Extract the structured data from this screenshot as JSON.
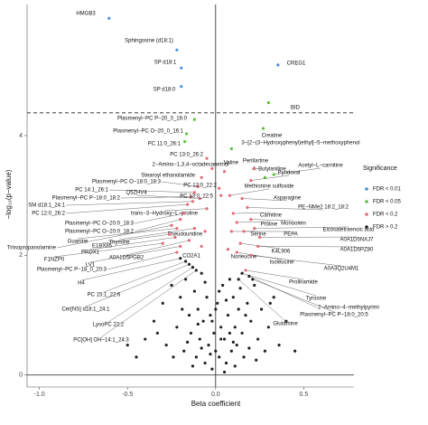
{
  "chart_data": {
    "type": "scatter",
    "x_label": "Beta coefficient",
    "y_label": "−log₁₀(p−value)",
    "legend_title": "Significance",
    "xlim": [
      -1.07,
      0.785
    ],
    "ylim": [
      -0.2,
      6.19
    ],
    "xticks": [
      {
        "value": -1,
        "label": "-1.0"
      },
      -0.5,
      {
        "value": 0,
        "label": "0.0"
      },
      0.5
    ],
    "yticks": [
      0,
      2,
      4
    ],
    "vline": 0,
    "hline": 0,
    "threshold_line": 4.38,
    "series": [
      {
        "name": "FDR < 0.01",
        "color": "#4a90d9",
        "x": [
          -0.605,
          -0.22,
          -0.195,
          -0.195,
          0.354
        ],
        "y": [
          5.96,
          5.43,
          5.13,
          4.82,
          5.18
        ],
        "labels": [
          "HMGB3",
          "Sphingosine (d18:1)",
          "SP d18:1",
          "SP d18:0",
          "CREG1"
        ]
      },
      {
        "name": "FDR < 0.05",
        "color": "#5cc43a",
        "x": [
          0.3,
          -0.12,
          -0.165,
          -0.175,
          0.27,
          0.09,
          0.33,
          0.28
        ],
        "y": [
          4.55,
          4.27,
          4.03,
          3.9,
          4.12,
          3.78,
          3.35,
          3.3
        ],
        "labels": [
          "BID",
          "Plasmenyl−PC P−20_0_16:0",
          "Plasmenyl−PC O−20_0_16:1",
          "PC 11:0_26:1",
          "Creatine",
          "3−[2−(3−Hydroxyphenyl)ethyl]−5−methoxyphenol",
          "Acetyl−L−carnitine",
          "4−Butylaniline"
        ]
      },
      {
        "name": "FDR < 0.2",
        "color": "#e8697a",
        "x": [
          -0.05,
          -0.02,
          -0.08,
          -0.1,
          -0.12,
          -0.14,
          -0.13,
          -0.16,
          -0.09,
          0.02,
          0.03,
          -0.05,
          -0.06,
          -0.18,
          -0.2,
          -0.22,
          -0.12,
          -0.25,
          -0.23,
          -0.26,
          -0.3,
          -0.15,
          -0.08,
          -0.2,
          -0.22,
          0.05,
          0.22,
          0.2,
          0.08,
          0.15,
          0.18,
          0.1,
          0.12,
          0.2,
          0.09,
          0.16,
          0.22,
          0.25,
          0.14,
          0.24,
          0.07,
          0.12,
          0.2,
          0.17
        ],
        "y": [
          3.62,
          3.45,
          3.3,
          3.15,
          3.05,
          2.98,
          2.9,
          2.85,
          2.95,
          3.12,
          3.0,
          2.78,
          2.4,
          2.7,
          2.6,
          2.45,
          2.45,
          2.5,
          2.3,
          2.35,
          2.2,
          2.25,
          2.15,
          2.15,
          2.05,
          3.4,
          3.45,
          3.25,
          3.0,
          2.95,
          2.8,
          2.7,
          2.55,
          2.6,
          2.4,
          2.4,
          2.45,
          2.3,
          2.2,
          2.15,
          2.1,
          2.05,
          2.0,
          1.75
        ],
        "labels": [
          "PC 13:0_26:2",
          "2−Amino−1,3,4−octadecanetriol",
          "Stearoyl ethanolamide",
          "Plasmenyl−PC O−18:0_18:3",
          "PC 14:1_26:1",
          "Plasmenyl−PC P−18:0_18:2",
          "SM d18:1_24:1",
          "PC 12:0_26:2",
          "Q5ZHV4",
          "PC 12:0_22:2",
          "PC 13:0_22:5",
          "trans−3−Hydroxy−L−proline",
          "Pseudouridine",
          "Plasmenyl−PC O−20:0_18:3",
          "Plasmenyl−PC O−20:0_18:2",
          "Guanine",
          "Thymine",
          "Triisopropanolamine",
          "PRDX1",
          "E1BX85",
          "F1NZP0",
          "A0A1D5PGB2",
          "CO2A1",
          "LV1",
          "Plasmenyl−PC P−18_0_20:3",
          "Valine",
          "Perillartine",
          "Pyridoxal",
          "Methionine sulfoxide",
          "Asparagine",
          "PE−NMe2 18:2_18:2",
          "Carnitine",
          "Proline",
          "Monoolein",
          "Serine",
          "PEPA",
          "Eicosatetraenoic acid",
          "A0A1D5NXJ7",
          "K4L906",
          "A0A1D5PZ80",
          "Norleucine",
          "Isoleucine",
          "A0A3Q2U4M1",
          "Prolinamide"
        ]
      },
      {
        "name": "FDR > 0.2",
        "color": "#222222",
        "x": [
          -0.2,
          -0.17,
          -0.15,
          -0.13,
          -0.11,
          0.15,
          0.19,
          0.21,
          0.13,
          -0.4,
          -0.35,
          -0.3,
          -0.28,
          -0.25,
          -0.22,
          -0.2,
          -0.18,
          -0.17,
          -0.15,
          -0.14,
          -0.12,
          -0.11,
          -0.1,
          -0.09,
          -0.08,
          -0.07,
          -0.06,
          -0.05,
          -0.04,
          -0.03,
          -0.02,
          -0.01,
          0.0,
          0.01,
          0.02,
          0.03,
          0.04,
          0.05,
          0.06,
          0.07,
          0.08,
          0.09,
          0.1,
          0.11,
          0.12,
          0.13,
          0.14,
          0.15,
          0.16,
          0.18,
          0.2,
          0.22,
          0.24,
          0.26,
          0.28,
          0.3,
          0.33,
          0.36,
          0.4,
          -0.45,
          -0.5,
          0.45,
          -0.13,
          0.05,
          -0.02,
          0.02,
          -0.08,
          0.08,
          0.11,
          -0.19,
          0.17,
          -0.24,
          0.23,
          -0.33,
          0.31,
          -0.06,
          0.06,
          -0.1,
          0.1,
          0.0,
          -0.03,
          0.03,
          -0.16,
          0.19
        ],
        "y": [
          1.95,
          1.9,
          1.85,
          1.8,
          1.75,
          1.7,
          1.65,
          1.6,
          1.6,
          0.6,
          0.9,
          1.2,
          0.5,
          1.5,
          0.8,
          1.3,
          0.4,
          1.6,
          1.0,
          0.7,
          1.4,
          0.3,
          1.1,
          0.6,
          1.7,
          0.9,
          0.2,
          1.3,
          0.5,
          1.0,
          0.1,
          0.7,
          0.4,
          1.2,
          0.3,
          0.8,
          1.5,
          0.6,
          0.2,
          1.0,
          1.6,
          0.4,
          1.3,
          0.8,
          0.5,
          1.1,
          1.45,
          0.7,
          0.3,
          1.2,
          0.9,
          1.5,
          0.6,
          1.1,
          0.4,
          0.8,
          1.3,
          0.5,
          0.9,
          0.3,
          0.5,
          0.4,
          0.15,
          0.05,
          0.9,
          1.4,
          0.45,
          0.7,
          0.15,
          1.1,
          1.0,
          0.3,
          0.25,
          0.7,
          1.2,
          1.55,
          1.25,
          0.85,
          0.55,
          1.1,
          0.35,
          0.6,
          0.55,
          0.45
        ],
        "labels": [
          "H4",
          "PC 15:1_22:6",
          "Cer[NS] d18:1_24:1",
          "LysoPC 22:2",
          "PC[OH] OH−14:1_24:3",
          "Tyrosine",
          "2−Amino−4−methylpyrimi",
          "Plasmenyl−PC P−18:0_20:5",
          "Glutamine",
          null,
          null,
          null,
          null,
          null,
          null,
          null,
          null,
          null,
          null,
          null,
          null,
          null,
          null,
          null,
          null,
          null,
          null,
          null,
          null,
          null,
          null,
          null,
          null,
          null,
          null,
          null,
          null,
          null,
          null,
          null,
          null,
          null,
          null,
          null,
          null,
          null,
          null,
          null,
          null,
          null,
          null,
          null,
          null,
          null,
          null,
          null,
          null,
          null,
          null,
          null,
          null,
          null,
          null,
          null,
          null,
          null,
          null,
          null,
          null,
          null,
          null,
          null,
          null,
          null,
          null,
          null,
          null,
          null,
          null,
          null,
          null,
          null,
          null,
          null
        ]
      }
    ]
  }
}
